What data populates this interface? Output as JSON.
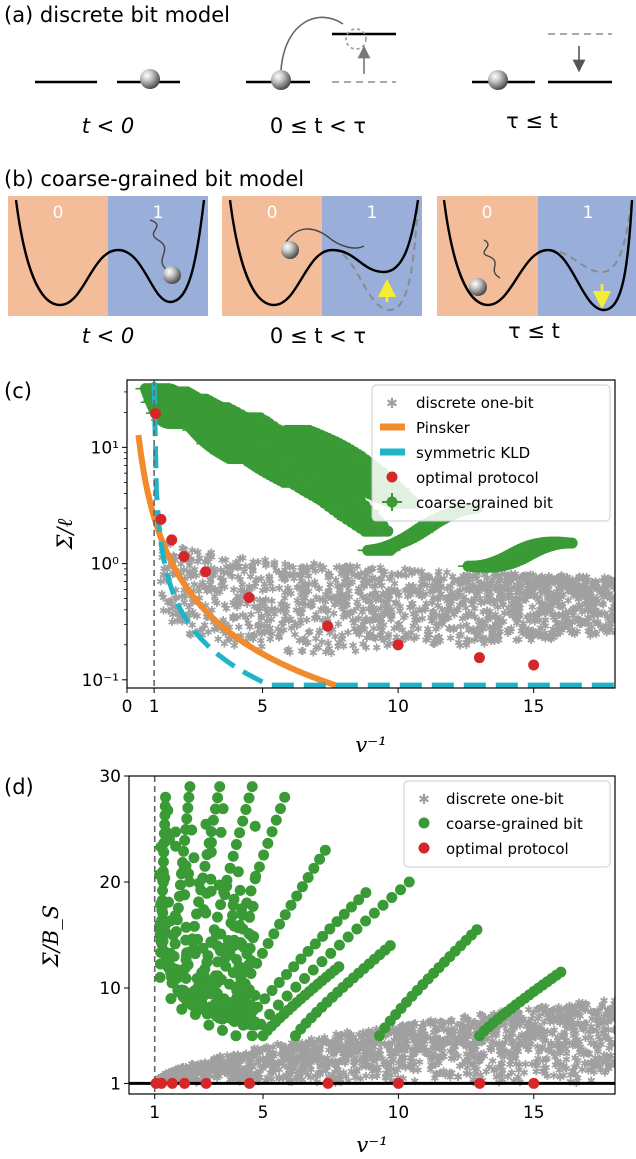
{
  "panel_a": {
    "label": "(a) discrete bit model",
    "captions": [
      "t < 0",
      "0 ≤ t < τ",
      "τ ≤ t"
    ]
  },
  "panel_b": {
    "label": "(b) coarse-grained bit model",
    "well_labels": [
      "0",
      "1"
    ],
    "captions": [
      "t < 0",
      "0 ≤ t < τ",
      "τ ≤ t"
    ],
    "colors": {
      "left_region": "#f3bd9a",
      "right_region": "#99afd9",
      "arrow": "#f5ec33"
    }
  },
  "colors": {
    "discrete": "#a0a0a0",
    "pinsker": "#f28a2e",
    "skld": "#1fb5c8",
    "optimal": "#d62728",
    "coarse": "#3a9a36"
  },
  "chart_data": [
    {
      "panel": "(c)",
      "type": "scatter",
      "xlabel": "v⁻¹",
      "ylabel": "Σ/ℓ",
      "xlim": [
        0,
        18
      ],
      "ylim": [
        0.085,
        38
      ],
      "yscale": "log",
      "xticks": [
        0,
        1,
        5,
        10,
        15
      ],
      "xtick_labels": [
        "0",
        "1",
        "5",
        "10",
        "15"
      ],
      "yticks": [
        0.1,
        1,
        10
      ],
      "ytick_labels": [
        "10⁻¹",
        "10⁰",
        "10¹"
      ],
      "vline_x": 1,
      "legend": {
        "placement": "top-right",
        "entries": [
          "discrete one-bit",
          "Pinsker",
          "symmetric KLD",
          "optimal protocol",
          "coarse-grained bit"
        ]
      },
      "optimal_points": {
        "x": [
          1.05,
          1.25,
          1.65,
          2.1,
          2.9,
          4.5,
          7.4,
          10.0,
          13.0,
          15.0
        ],
        "y": [
          19.5,
          2.4,
          1.6,
          1.15,
          0.85,
          0.51,
          0.29,
          0.2,
          0.155,
          0.134
        ]
      },
      "coarse_fans": [
        {
          "start": [
            1.1,
            32
          ],
          "end": [
            2.0,
            16
          ]
        },
        {
          "start": [
            1.8,
            30
          ],
          "end": [
            4.2,
            8
          ]
        },
        {
          "start": [
            2.5,
            26
          ],
          "end": [
            6.2,
            5
          ]
        },
        {
          "start": [
            3.3,
            22
          ],
          "end": [
            7.9,
            3.2
          ]
        },
        {
          "start": [
            4.5,
            18
          ],
          "end": [
            9.2,
            1.9
          ]
        },
        {
          "start": [
            6.3,
            14
          ],
          "end": [
            10.2,
            3.3
          ]
        },
        {
          "start": [
            9.3,
            1.3
          ],
          "end": [
            12.5,
            3.0
          ]
        },
        {
          "start": [
            13.0,
            0.95
          ],
          "end": [
            16.0,
            1.5
          ]
        }
      ]
    },
    {
      "panel": "(d)",
      "type": "scatter",
      "xlabel": "v⁻¹",
      "ylabel": "Σ/B_S",
      "xlim": [
        0,
        18
      ],
      "ylim": [
        0,
        30
      ],
      "xticks": [
        1,
        5,
        10,
        15
      ],
      "xtick_labels": [
        "1",
        "5",
        "10",
        "15"
      ],
      "yticks": [
        1,
        10,
        20,
        30
      ],
      "ytick_labels": [
        "1",
        "10",
        "20",
        "30"
      ],
      "vline_x": 1,
      "hline_y": 1,
      "legend": {
        "placement": "top-right",
        "entries": [
          "discrete one-bit",
          "coarse-grained bit",
          "optimal protocol"
        ]
      },
      "optimal_points": {
        "x": [
          1.05,
          1.25,
          1.65,
          2.1,
          2.9,
          4.5,
          7.4,
          10.0,
          13.0,
          15.0
        ],
        "y": [
          1,
          1,
          1,
          1,
          1,
          1,
          1,
          1,
          1,
          1
        ]
      },
      "coarse_fans": [
        {
          "start": [
            1.2,
            11
          ],
          "end": [
            1.4,
            28
          ]
        },
        {
          "start": [
            1.6,
            9
          ],
          "end": [
            2.3,
            29
          ]
        },
        {
          "start": [
            2.0,
            8
          ],
          "end": [
            3.4,
            29
          ]
        },
        {
          "start": [
            2.5,
            7.5
          ],
          "end": [
            4.6,
            29
          ]
        },
        {
          "start": [
            3.0,
            6.5
          ],
          "end": [
            5.8,
            28
          ]
        },
        {
          "start": [
            3.5,
            6
          ],
          "end": [
            7.3,
            23
          ]
        },
        {
          "start": [
            4.0,
            5.5
          ],
          "end": [
            8.8,
            19
          ]
        },
        {
          "start": [
            4.6,
            5.5
          ],
          "end": [
            10.4,
            20
          ]
        },
        {
          "start": [
            5.0,
            5.5
          ],
          "end": [
            7.8,
            12
          ]
        },
        {
          "start": [
            6.2,
            5.5
          ],
          "end": [
            9.7,
            14
          ]
        },
        {
          "start": [
            9.3,
            5.5
          ],
          "end": [
            12.9,
            15.5
          ]
        },
        {
          "start": [
            13.0,
            5.5
          ],
          "end": [
            16.0,
            11.5
          ]
        }
      ]
    }
  ]
}
